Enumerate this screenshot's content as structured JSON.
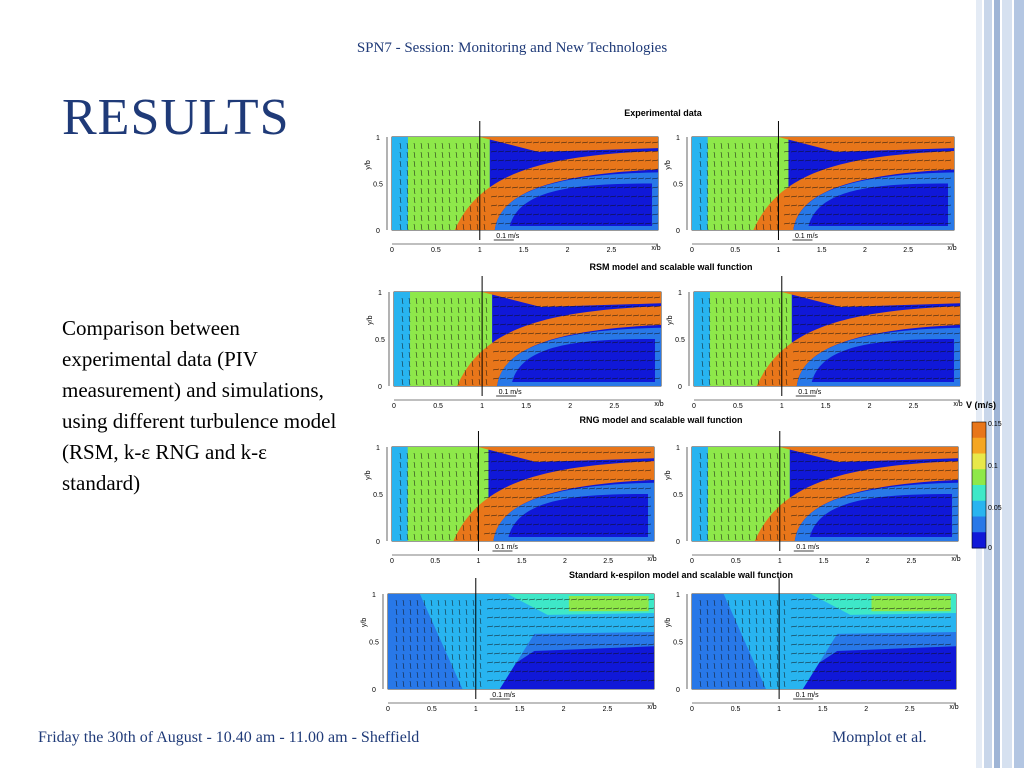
{
  "header": {
    "session": "SPN7 - Session: Monitoring and New Technologies"
  },
  "slide": {
    "title": "RESULTS",
    "description": "Comparison between experimental data (PIV measurement) and simulations, using different turbulence model (RSM, k-ε RNG and k-ε standard)"
  },
  "figure": {
    "captions": [
      "Experimental data",
      "RSM model and scalable wall function",
      "RNG model and scalable wall function",
      "Standard k-espilon model and scalable wall function"
    ],
    "x_ticks": [
      "0",
      "0.5",
      "1",
      "1.5",
      "2",
      "2.5"
    ],
    "y_ticks": [
      "0",
      "0.5",
      "1"
    ],
    "x_label": "x/b",
    "y_label": "y/b",
    "scale_label": "0.1 m/s",
    "colorbar": {
      "title": "V (m/s)",
      "ticks": [
        "0.15",
        "0.1",
        "0.05",
        "0"
      ],
      "colors": [
        "#e8761a",
        "#f5a623",
        "#e8e84a",
        "#8ee84a",
        "#3ee8c8",
        "#28b4f0",
        "#2878e8",
        "#1018d8"
      ]
    }
  },
  "footer": {
    "left": "Friday the 30th of August - 10.40 am - 11.00 am - Sheffield",
    "right": "Momplot et al."
  }
}
